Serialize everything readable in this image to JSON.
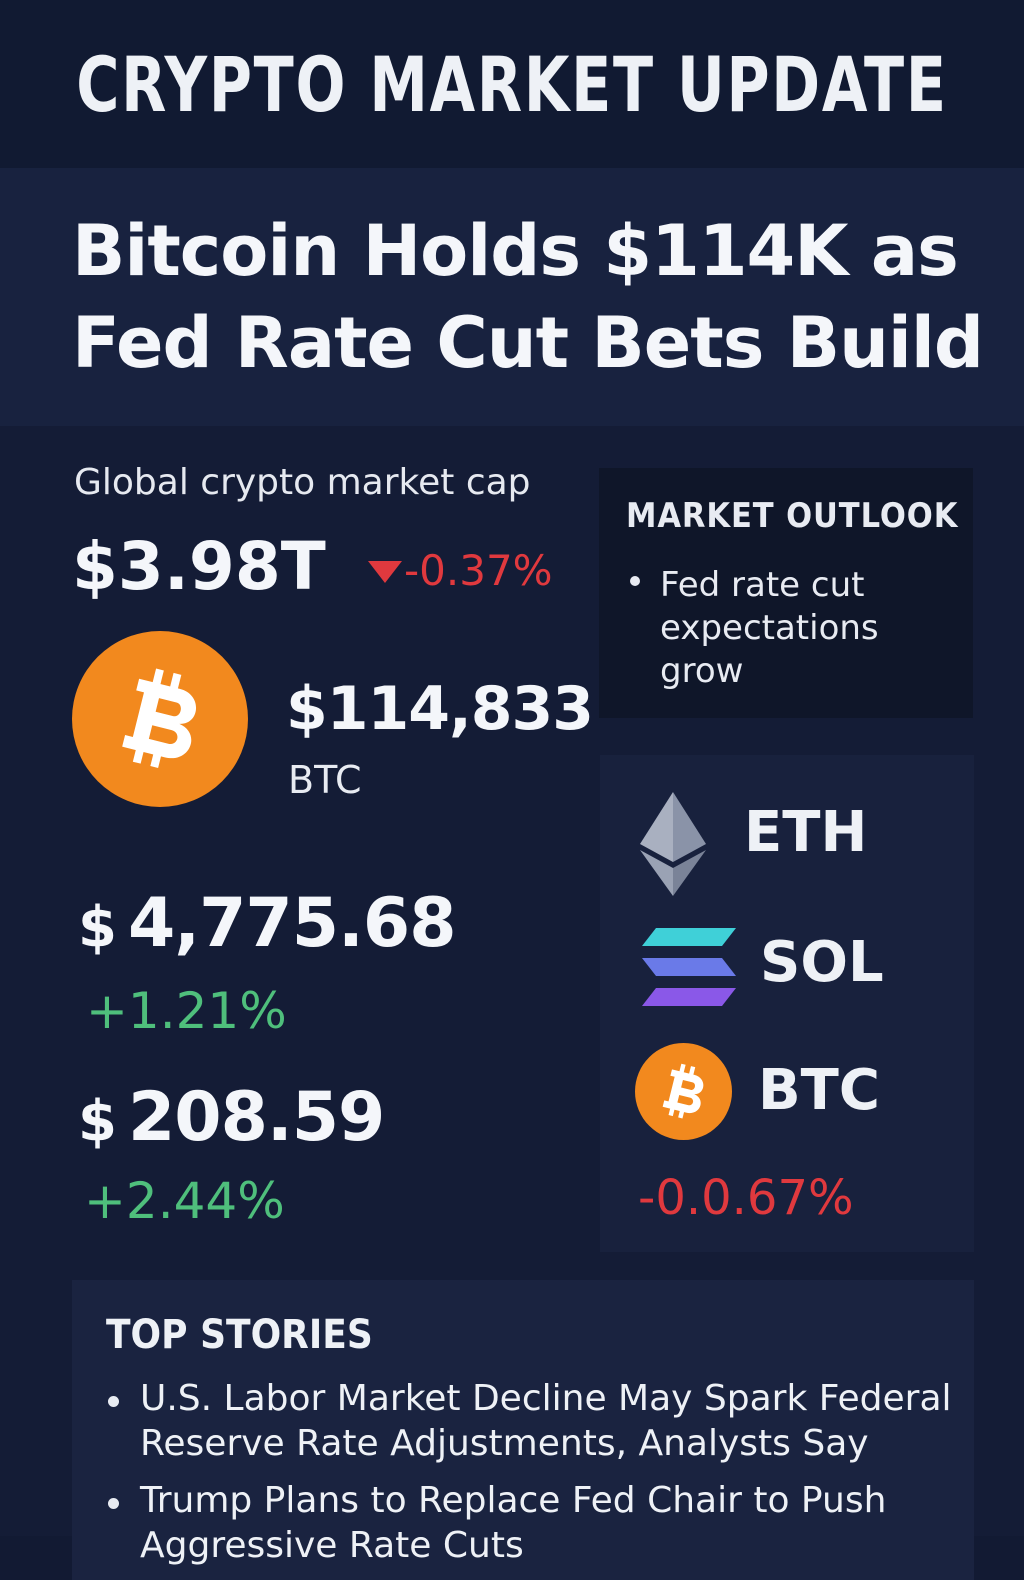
{
  "banner": {
    "title": "CRYPTO MARKET UPDATE"
  },
  "headline": {
    "line1": "Bitcoin Holds $114K as",
    "line2": "Fed Rate Cut Bets Build"
  },
  "market_cap": {
    "label": "Global crypto market cap",
    "value": "$3.98T",
    "change": "-0.37%"
  },
  "btc": {
    "price": "$114,833",
    "ticker": "BTC"
  },
  "eth": {
    "currency": "$",
    "price": "4,775.68",
    "change": "+1.21%"
  },
  "sol": {
    "currency": "$",
    "price": "208.59",
    "change": "+2.44%"
  },
  "outlook": {
    "title": "MARKET OUTLOOK",
    "items": [
      "Fed rate cut expectations grow"
    ]
  },
  "coins_card": {
    "eth_label": "ETH",
    "sol_label": "SOL",
    "btc_label": "BTC",
    "btc_change": "-0.0.67%"
  },
  "top_stories": {
    "title": "TOP STORIES",
    "items": [
      "U.S. Labor Market Decline May Spark Federal Reserve Rate Adjustments, Analysts Say",
      "Trump Plans to Replace Fed Chair to Push Aggressive Rate Cuts"
    ]
  },
  "colors": {
    "negative": "#e0393e",
    "positive": "#4fbf7c",
    "bitcoin": "#f2891e",
    "background": "#121a33"
  },
  "icons": [
    "bitcoin-icon",
    "ethereum-icon",
    "solana-icon",
    "triangle-down-icon"
  ]
}
